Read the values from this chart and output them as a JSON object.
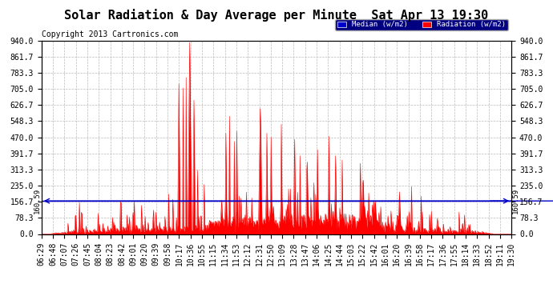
{
  "title": "Solar Radiation & Day Average per Minute  Sat Apr 13 19:30",
  "copyright": "Copyright 2013 Cartronics.com",
  "bg_color": "#ffffff",
  "plot_bg_color": "#ffffff",
  "median_value": 160.59,
  "median_label": "160.59",
  "ylim": [
    0.0,
    940.0
  ],
  "yticks": [
    0.0,
    78.3,
    156.7,
    235.0,
    313.3,
    391.7,
    470.0,
    548.3,
    626.7,
    705.0,
    783.3,
    861.7,
    940.0
  ],
  "ytick_labels": [
    "0.0",
    "78.3",
    "156.7",
    "235.0",
    "313.3",
    "391.7",
    "470.0",
    "548.3",
    "626.7",
    "705.0",
    "783.3",
    "861.7",
    "940.0"
  ],
  "radiation_color": "#ff0000",
  "median_line_color": "#0000cc",
  "grid_color": "#bbbbbb",
  "title_fontsize": 11,
  "copyright_fontsize": 7,
  "tick_fontsize": 7,
  "legend_bg": "#000080",
  "legend_items": [
    {
      "label": "Median (w/m2)",
      "color": "#0000cc"
    },
    {
      "label": "Radiation (w/m2)",
      "color": "#ff0000"
    }
  ],
  "xtick_labels": [
    "06:29",
    "06:48",
    "07:07",
    "07:26",
    "07:45",
    "08:04",
    "08:23",
    "08:42",
    "09:01",
    "09:20",
    "09:39",
    "09:58",
    "10:17",
    "10:36",
    "10:55",
    "11:15",
    "11:34",
    "11:53",
    "12:12",
    "12:31",
    "12:50",
    "13:09",
    "13:28",
    "13:47",
    "14:06",
    "14:25",
    "14:44",
    "15:03",
    "15:22",
    "15:42",
    "16:01",
    "16:20",
    "16:39",
    "16:58",
    "17:17",
    "17:36",
    "17:55",
    "18:14",
    "18:33",
    "18:52",
    "19:11",
    "19:30"
  ]
}
